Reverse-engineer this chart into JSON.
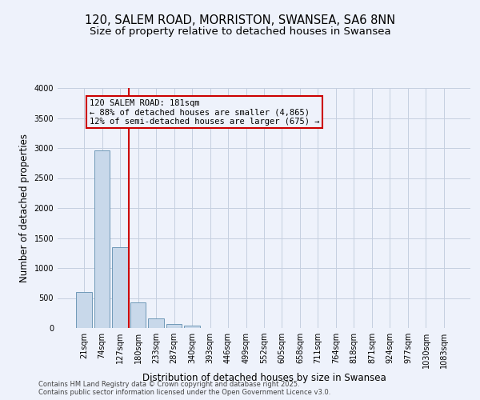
{
  "title1": "120, SALEM ROAD, MORRISTON, SWANSEA, SA6 8NN",
  "title2": "Size of property relative to detached houses in Swansea",
  "xlabel": "Distribution of detached houses by size in Swansea",
  "ylabel": "Number of detached properties",
  "categories": [
    "21sqm",
    "74sqm",
    "127sqm",
    "180sqm",
    "233sqm",
    "287sqm",
    "340sqm",
    "393sqm",
    "446sqm",
    "499sqm",
    "552sqm",
    "605sqm",
    "658sqm",
    "711sqm",
    "764sqm",
    "818sqm",
    "871sqm",
    "924sqm",
    "977sqm",
    "1030sqm",
    "1083sqm"
  ],
  "values": [
    600,
    2960,
    1350,
    430,
    160,
    70,
    40,
    0,
    0,
    0,
    0,
    0,
    0,
    0,
    0,
    0,
    0,
    0,
    0,
    0,
    0
  ],
  "bar_color": "#c8d8ea",
  "bar_edge_color": "#7099b8",
  "vline_color": "#cc0000",
  "annotation_lines": [
    "120 SALEM ROAD: 181sqm",
    "← 88% of detached houses are smaller (4,865)",
    "12% of semi-detached houses are larger (675) →"
  ],
  "annotation_box_color": "#cc0000",
  "ylim": [
    0,
    4000
  ],
  "yticks": [
    0,
    500,
    1000,
    1500,
    2000,
    2500,
    3000,
    3500,
    4000
  ],
  "footnote1": "Contains HM Land Registry data © Crown copyright and database right 2025.",
  "footnote2": "Contains public sector information licensed under the Open Government Licence v3.0.",
  "bg_color": "#eef2fb",
  "grid_color": "#c5cfe0",
  "title_fontsize": 10.5,
  "subtitle_fontsize": 9.5,
  "tick_fontsize": 7,
  "ylabel_fontsize": 8.5,
  "xlabel_fontsize": 8.5,
  "footnote_fontsize": 6,
  "ann_fontsize": 7.5
}
